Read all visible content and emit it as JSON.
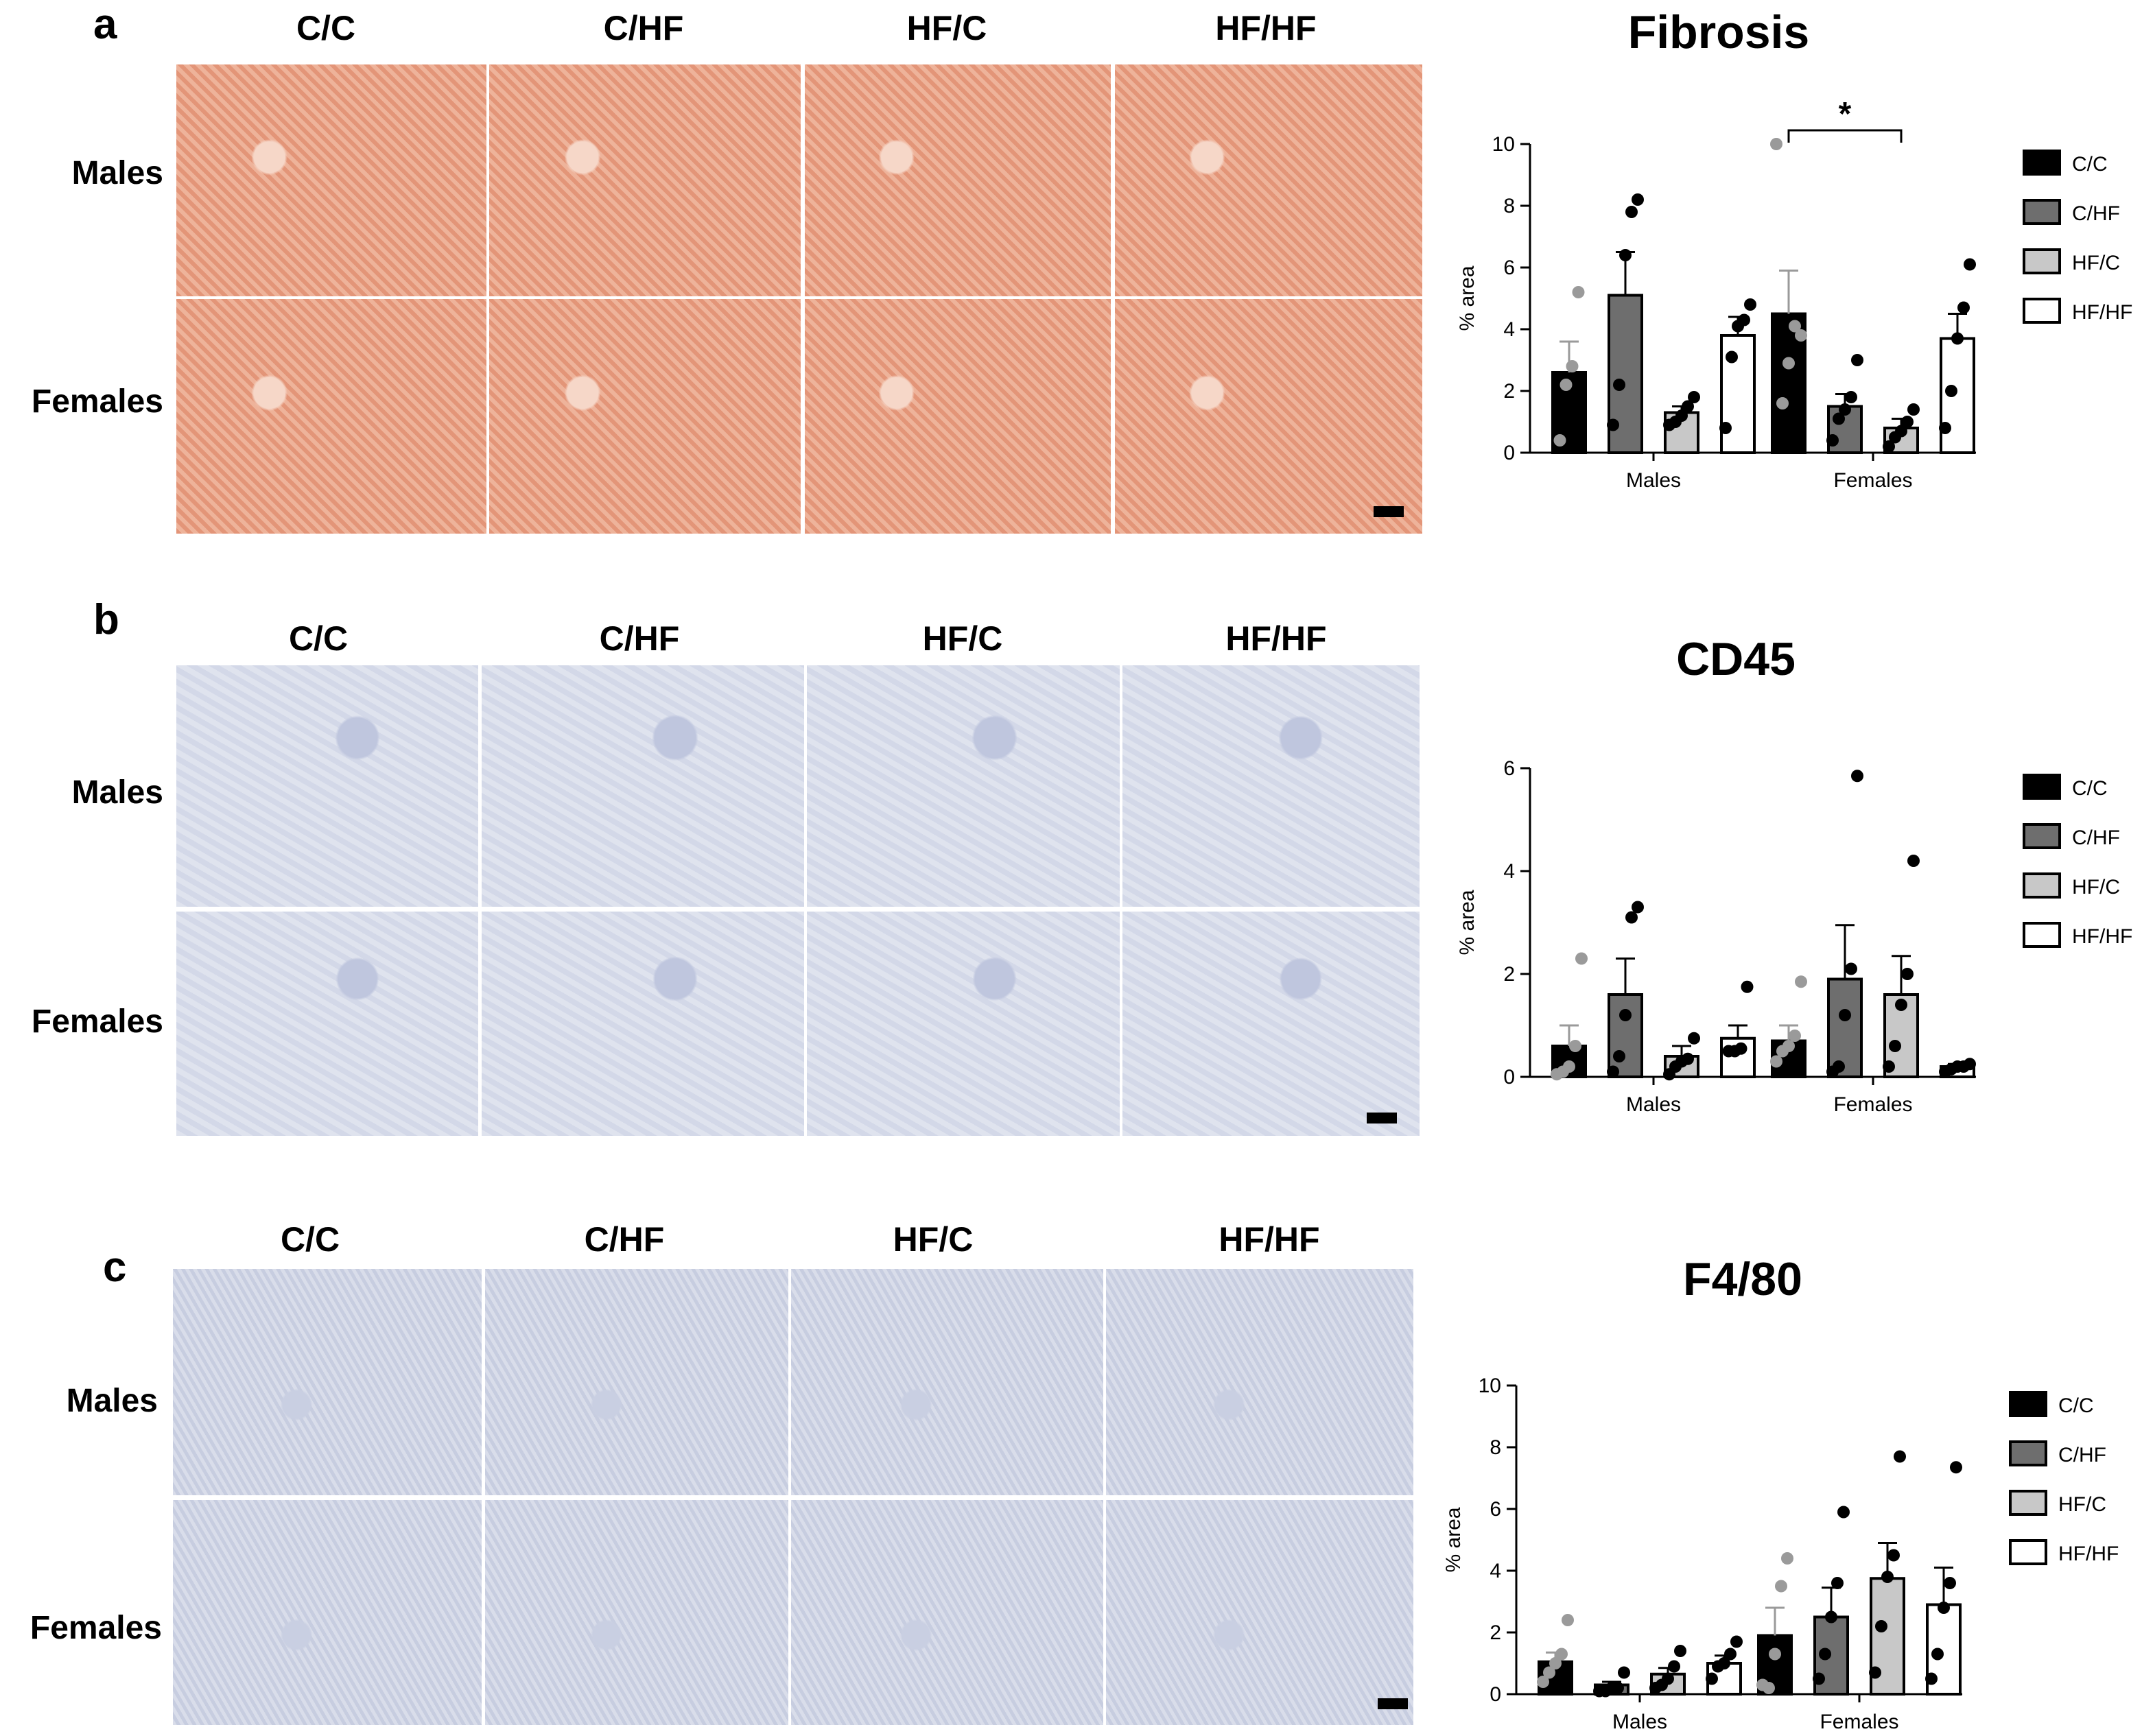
{
  "columns": [
    "C/C",
    "C/HF",
    "HF/C",
    "HF/HF"
  ],
  "rows": [
    "Males",
    "Females"
  ],
  "panels": [
    {
      "letter": "a",
      "stain": "sirius-red",
      "tile_color": "#e9a58a",
      "chart_data": {
        "type": "bar",
        "title": "Fibrosis",
        "ylabel": "% area",
        "ylim": [
          0,
          10
        ],
        "yticks": [
          0,
          2,
          4,
          6,
          8,
          10
        ],
        "groups": [
          "Males",
          "Females"
        ],
        "legend_placement": "right",
        "series": [
          {
            "name": "C/C",
            "fill": "#000000",
            "values": [
              2.6,
              4.5
            ],
            "sem": [
              1.0,
              1.4
            ],
            "points": [
              [
                0.4,
                2.2,
                2.8,
                5.2
              ],
              [
                10.0,
                1.6,
                2.9,
                4.1,
                3.8
              ]
            ]
          },
          {
            "name": "C/HF",
            "fill": "#6e6e6e",
            "values": [
              5.1,
              1.5
            ],
            "sem": [
              1.4,
              0.4
            ],
            "points": [
              [
                0.9,
                2.2,
                6.4,
                7.8,
                8.2
              ],
              [
                0.4,
                1.1,
                1.4,
                1.8,
                3.0
              ]
            ]
          },
          {
            "name": "HF/C",
            "fill": "#c8c8c8",
            "values": [
              1.3,
              0.8
            ],
            "sem": [
              0.2,
              0.3
            ],
            "points": [
              [
                0.9,
                1.0,
                1.2,
                1.5,
                1.8
              ],
              [
                0.2,
                0.5,
                0.7,
                1.0,
                1.4
              ]
            ]
          },
          {
            "name": "HF/HF",
            "fill": "#ffffff",
            "values": [
              3.8,
              3.7
            ],
            "sem": [
              0.6,
              0.8
            ],
            "points": [
              [
                0.8,
                3.1,
                4.1,
                4.3,
                4.8
              ],
              [
                0.8,
                2.0,
                3.7,
                4.7,
                6.1
              ]
            ]
          }
        ],
        "annotation": "*"
      }
    },
    {
      "letter": "b",
      "stain": "CD45-IHC",
      "tile_color": "#d6dbea",
      "chart_data": {
        "type": "bar",
        "title": "CD45",
        "ylabel": "% area",
        "ylim": [
          0,
          6
        ],
        "yticks": [
          0,
          2,
          4,
          6
        ],
        "groups": [
          "Males",
          "Females"
        ],
        "legend_placement": "right",
        "series": [
          {
            "name": "C/C",
            "fill": "#000000",
            "values": [
              0.6,
              0.7
            ],
            "sem": [
              0.4,
              0.3
            ],
            "points": [
              [
                0.05,
                0.1,
                0.2,
                0.6,
                2.3
              ],
              [
                0.3,
                0.5,
                0.6,
                0.8,
                1.85
              ]
            ]
          },
          {
            "name": "C/HF",
            "fill": "#6e6e6e",
            "values": [
              1.6,
              1.9
            ],
            "sem": [
              0.7,
              1.05
            ],
            "points": [
              [
                0.1,
                0.4,
                1.2,
                3.1,
                3.3
              ],
              [
                0.1,
                0.2,
                1.2,
                2.1,
                5.85
              ]
            ]
          },
          {
            "name": "HF/C",
            "fill": "#c8c8c8",
            "values": [
              0.4,
              1.6
            ],
            "sem": [
              0.2,
              0.75
            ],
            "points": [
              [
                0.05,
                0.2,
                0.3,
                0.35,
                0.75
              ],
              [
                0.2,
                0.6,
                1.4,
                2.0,
                4.2
              ]
            ]
          },
          {
            "name": "HF/HF",
            "fill": "#ffffff",
            "values": [
              0.75,
              0.2
            ],
            "sem": [
              0.25,
              0.05
            ],
            "points": [
              [
                0.5,
                0.5,
                0.55,
                1.75
              ],
              [
                0.1,
                0.15,
                0.2,
                0.2,
                0.25
              ]
            ]
          }
        ]
      }
    },
    {
      "letter": "c",
      "stain": "F4/80-IHC",
      "tile_color": "#d4d8e8",
      "chart_data": {
        "type": "bar",
        "title": "F4/80",
        "ylabel": "% area",
        "ylim": [
          0,
          10
        ],
        "yticks": [
          0,
          2,
          4,
          6,
          8,
          10
        ],
        "groups": [
          "Males",
          "Females"
        ],
        "legend_placement": "right",
        "series": [
          {
            "name": "C/C",
            "fill": "#000000",
            "values": [
              1.05,
              1.9
            ],
            "sem": [
              0.3,
              0.9
            ],
            "points": [
              [
                0.4,
                0.7,
                1.0,
                1.3,
                2.4
              ],
              [
                0.3,
                0.2,
                1.3,
                3.5,
                4.4
              ]
            ]
          },
          {
            "name": "C/HF",
            "fill": "#6e6e6e",
            "values": [
              0.3,
              2.5
            ],
            "sem": [
              0.1,
              0.95
            ],
            "points": [
              [
                0.1,
                0.1,
                0.2,
                0.2,
                0.7
              ],
              [
                0.5,
                1.3,
                2.5,
                3.6,
                5.9
              ]
            ]
          },
          {
            "name": "HF/C",
            "fill": "#c8c8c8",
            "values": [
              0.65,
              3.75
            ],
            "sem": [
              0.2,
              1.15
            ],
            "points": [
              [
                0.2,
                0.3,
                0.5,
                0.9,
                1.4
              ],
              [
                0.7,
                2.2,
                3.8,
                4.5,
                7.7
              ]
            ]
          },
          {
            "name": "HF/HF",
            "fill": "#ffffff",
            "values": [
              1.0,
              2.9
            ],
            "sem": [
              0.25,
              1.2
            ],
            "points": [
              [
                0.5,
                0.9,
                1.0,
                1.3,
                1.7
              ],
              [
                0.5,
                1.3,
                2.8,
                3.6,
                7.35
              ]
            ]
          }
        ]
      }
    }
  ]
}
